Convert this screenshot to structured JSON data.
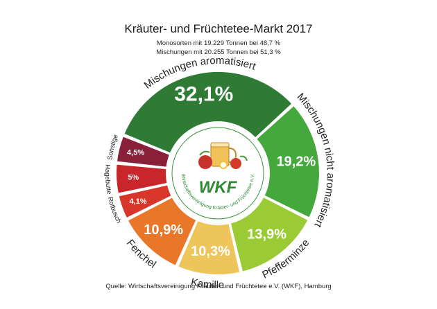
{
  "chart_data": {
    "type": "pie",
    "title": "Kräuter- und Früchtetee-Markt 2017",
    "subtitle_lines": [
      "Monosorten mit 19.229 Tonnen bei 48,7 %",
      "Mischungen mit 20.255 Tonnen bei 51,3 %"
    ],
    "slices": [
      {
        "label": "Mischungen aromatisiert",
        "value": 32.1,
        "value_label": "32,1%",
        "color": "#2f7a34"
      },
      {
        "label": "Mischungen nicht aromatisiert",
        "value": 19.2,
        "value_label": "19,2%",
        "color": "#45a83c"
      },
      {
        "label": "Pfefferminze",
        "value": 13.9,
        "value_label": "13,9%",
        "color": "#9acb35"
      },
      {
        "label": "Kamille",
        "value": 10.3,
        "value_label": "10,3%",
        "color": "#eec55a"
      },
      {
        "label": "Fenchel",
        "value": 10.9,
        "value_label": "10,9%",
        "color": "#e8772a"
      },
      {
        "label": "Rotbusch",
        "value": 4.1,
        "value_label": "4,1%",
        "color": "#d8362a"
      },
      {
        "label": "Hagebutte",
        "value": 5.0,
        "value_label": "5%",
        "color": "#c8262a"
      },
      {
        "label": "Sonstige",
        "value": 4.5,
        "value_label": "4,5%",
        "color": "#8a1f3a"
      }
    ],
    "source": "Quelle: Wirtschaftsvereinigung Kräuter- und Früchtetee e.V. (WKF), Hamburg"
  },
  "logo": {
    "acronym": "WKF",
    "ring_text": "Wirtschaftsvereinigung Kräuter- und Früchtetee e.V."
  }
}
